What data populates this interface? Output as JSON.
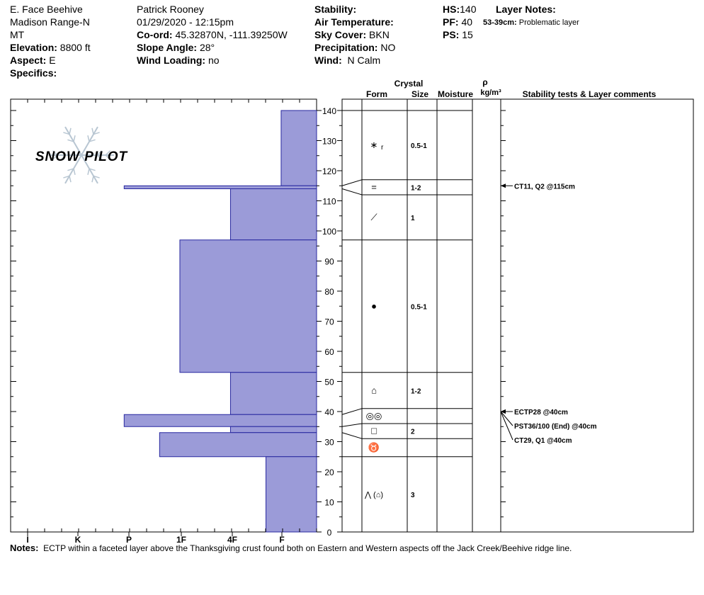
{
  "header": {
    "location": "E. Face Beehive",
    "range": "Madison Range-N",
    "state": "MT",
    "elevation_label": "Elevation:",
    "elevation_value": "8800 ft",
    "aspect_label": "Aspect:",
    "aspect_value": "E",
    "specifics_label": "Specifics:",
    "observer": "Patrick Rooney",
    "datetime": "01/29/2020 - 12:15pm",
    "coord_label": "Co-ord:",
    "coord_value": "45.32870N, -111.39250W",
    "slope_label": "Slope Angle:",
    "slope_value": "28°",
    "wind_loading_label": "Wind Loading:",
    "wind_loading_value": "no",
    "stability_label": "Stability:",
    "air_temp_label": "Air Temperature:",
    "sky_label": "Sky Cover:",
    "sky_value": "BKN",
    "precip_label": "Precipitation:",
    "precip_value": "NO",
    "wind_label": "Wind:",
    "wind_value": "N Calm",
    "hs_label": "HS:",
    "hs_value": "140",
    "pf_label": "PF:",
    "pf_value": "40",
    "ps_label": "PS:",
    "ps_value": "15",
    "layer_notes_label": "Layer Notes:",
    "layer_note_range": "53-39cm:",
    "layer_note_text": "Problematic layer"
  },
  "logo": {
    "text": "SNOW PILOT",
    "color": "#f2c4a8",
    "flake_color": "#b8c6d2"
  },
  "columns": {
    "crystal": "Crystal",
    "form": "Form",
    "size": "Size",
    "moisture": "Moisture",
    "rho": "ρ",
    "density_unit": "kg/m³",
    "tests": "Stability tests & Layer comments"
  },
  "notes": {
    "label": "Notes:",
    "text": "ECTP within a faceted layer above the Thanksgiving crust found both on Eastern and Western aspects off the Jack Creek/Beehive ridge line."
  },
  "chart_data": {
    "type": "bar",
    "fill_color": "#9b9bd8",
    "edge_color": "#2828a0",
    "hardness_axis": [
      "I",
      "K",
      "P",
      "1F",
      "4F",
      "F"
    ],
    "height_axis": {
      "min": 0,
      "max": 140,
      "step": 10,
      "unit": "cm"
    },
    "hardness_layers": [
      {
        "bottom": 115,
        "top": 140,
        "hardness": 0.7
      },
      {
        "bottom": 114,
        "top": 115,
        "hardness": 3.8
      },
      {
        "bottom": 97,
        "top": 114,
        "hardness": 1.7
      },
      {
        "bottom": 53,
        "top": 97,
        "hardness": 2.7
      },
      {
        "bottom": 39,
        "top": 53,
        "hardness": 1.7
      },
      {
        "bottom": 35,
        "top": 39,
        "hardness": 3.8
      },
      {
        "bottom": 33,
        "top": 35,
        "hardness": 1.7
      },
      {
        "bottom": 25,
        "top": 33,
        "hardness": 3.1
      },
      {
        "bottom": 0,
        "top": 25,
        "hardness": 1.0
      }
    ],
    "strat_boundaries": [
      140,
      117,
      112,
      97,
      53,
      41,
      36,
      31,
      25,
      0
    ],
    "crystal_rows": [
      {
        "bottom": 117,
        "top": 140,
        "form": "∗",
        "form_sub": "r",
        "size": "0.5-1"
      },
      {
        "bottom": 112,
        "top": 117,
        "form": "=",
        "form_sub": "",
        "size": "1-2"
      },
      {
        "bottom": 97,
        "top": 112,
        "form": "⟋",
        "form_sub": "",
        "size": "1"
      },
      {
        "bottom": 53,
        "top": 97,
        "form": "●",
        "form_sub": "",
        "size": "0.5-1"
      },
      {
        "bottom": 41,
        "top": 53,
        "form": "⌂",
        "form_sub": "",
        "size": "1-2"
      },
      {
        "bottom": 36,
        "top": 41,
        "form": "◎◎",
        "form_sub": "",
        "size": ""
      },
      {
        "bottom": 31,
        "top": 36,
        "form": "□",
        "form_sub": "",
        "size": "2"
      },
      {
        "bottom": 25,
        "top": 31,
        "form": "♉",
        "form_sub": "",
        "size": ""
      },
      {
        "bottom": 0,
        "top": 25,
        "form": "⋀ (⌂)",
        "form_sub": "",
        "size": "3"
      }
    ],
    "tests": [
      {
        "height": 115,
        "text": "CT11, Q2 @115cm"
      },
      {
        "height": 40,
        "text": "ECTP28 @40cm"
      },
      {
        "height": 40,
        "text": "PST36/100 (End) @40cm"
      },
      {
        "height": 40,
        "text": "CT29, Q1 @40cm"
      }
    ]
  }
}
